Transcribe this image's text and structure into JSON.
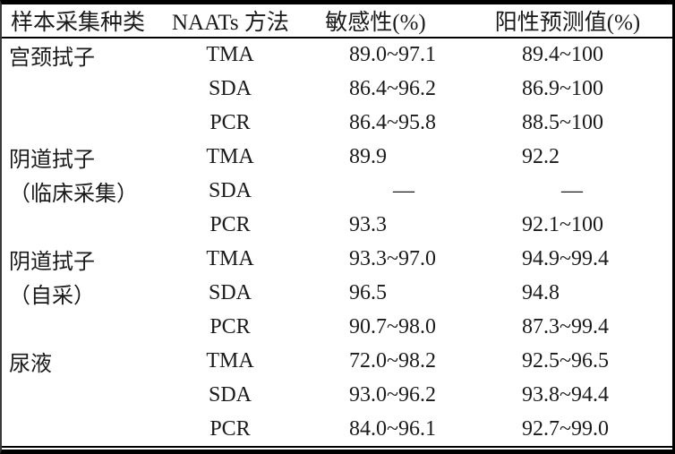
{
  "table": {
    "columns": [
      "样本采集种类",
      "NAATs 方法",
      "敏感性(%)",
      "阳性预测值(%)"
    ],
    "rows": [
      {
        "sample": "宫颈拭子",
        "method": "TMA",
        "sensitivity": "89.0~97.1",
        "ppv": "89.4~100"
      },
      {
        "sample": "",
        "method": "SDA",
        "sensitivity": "86.4~96.2",
        "ppv": "86.9~100"
      },
      {
        "sample": "",
        "method": "PCR",
        "sensitivity": "86.4~95.8",
        "ppv": "88.5~100"
      },
      {
        "sample": "阴道拭子",
        "method": "TMA",
        "sensitivity": "89.9",
        "ppv": "92.2"
      },
      {
        "sample": "（临床采集）",
        "method": "SDA",
        "sensitivity": "—",
        "ppv": "—"
      },
      {
        "sample": "",
        "method": "PCR",
        "sensitivity": "93.3",
        "ppv": "92.1~100"
      },
      {
        "sample": "阴道拭子",
        "method": "TMA",
        "sensitivity": "93.3~97.0",
        "ppv": "94.9~99.4"
      },
      {
        "sample": "（自采）",
        "method": "SDA",
        "sensitivity": "96.5",
        "ppv": "94.8"
      },
      {
        "sample": "",
        "method": "PCR",
        "sensitivity": "90.7~98.0",
        "ppv": "87.3~99.4"
      },
      {
        "sample": "尿液",
        "method": "TMA",
        "sensitivity": "72.0~98.2",
        "ppv": "92.5~96.5"
      },
      {
        "sample": "",
        "method": "SDA",
        "sensitivity": "93.0~96.2",
        "ppv": "93.8~94.4"
      },
      {
        "sample": "",
        "method": "PCR",
        "sensitivity": "84.0~96.1",
        "ppv": "92.7~99.0"
      }
    ],
    "empty_value_marker": "—"
  },
  "colors": {
    "text": "#1a1a1a",
    "rule": "#000000",
    "background": "#ffffff"
  }
}
